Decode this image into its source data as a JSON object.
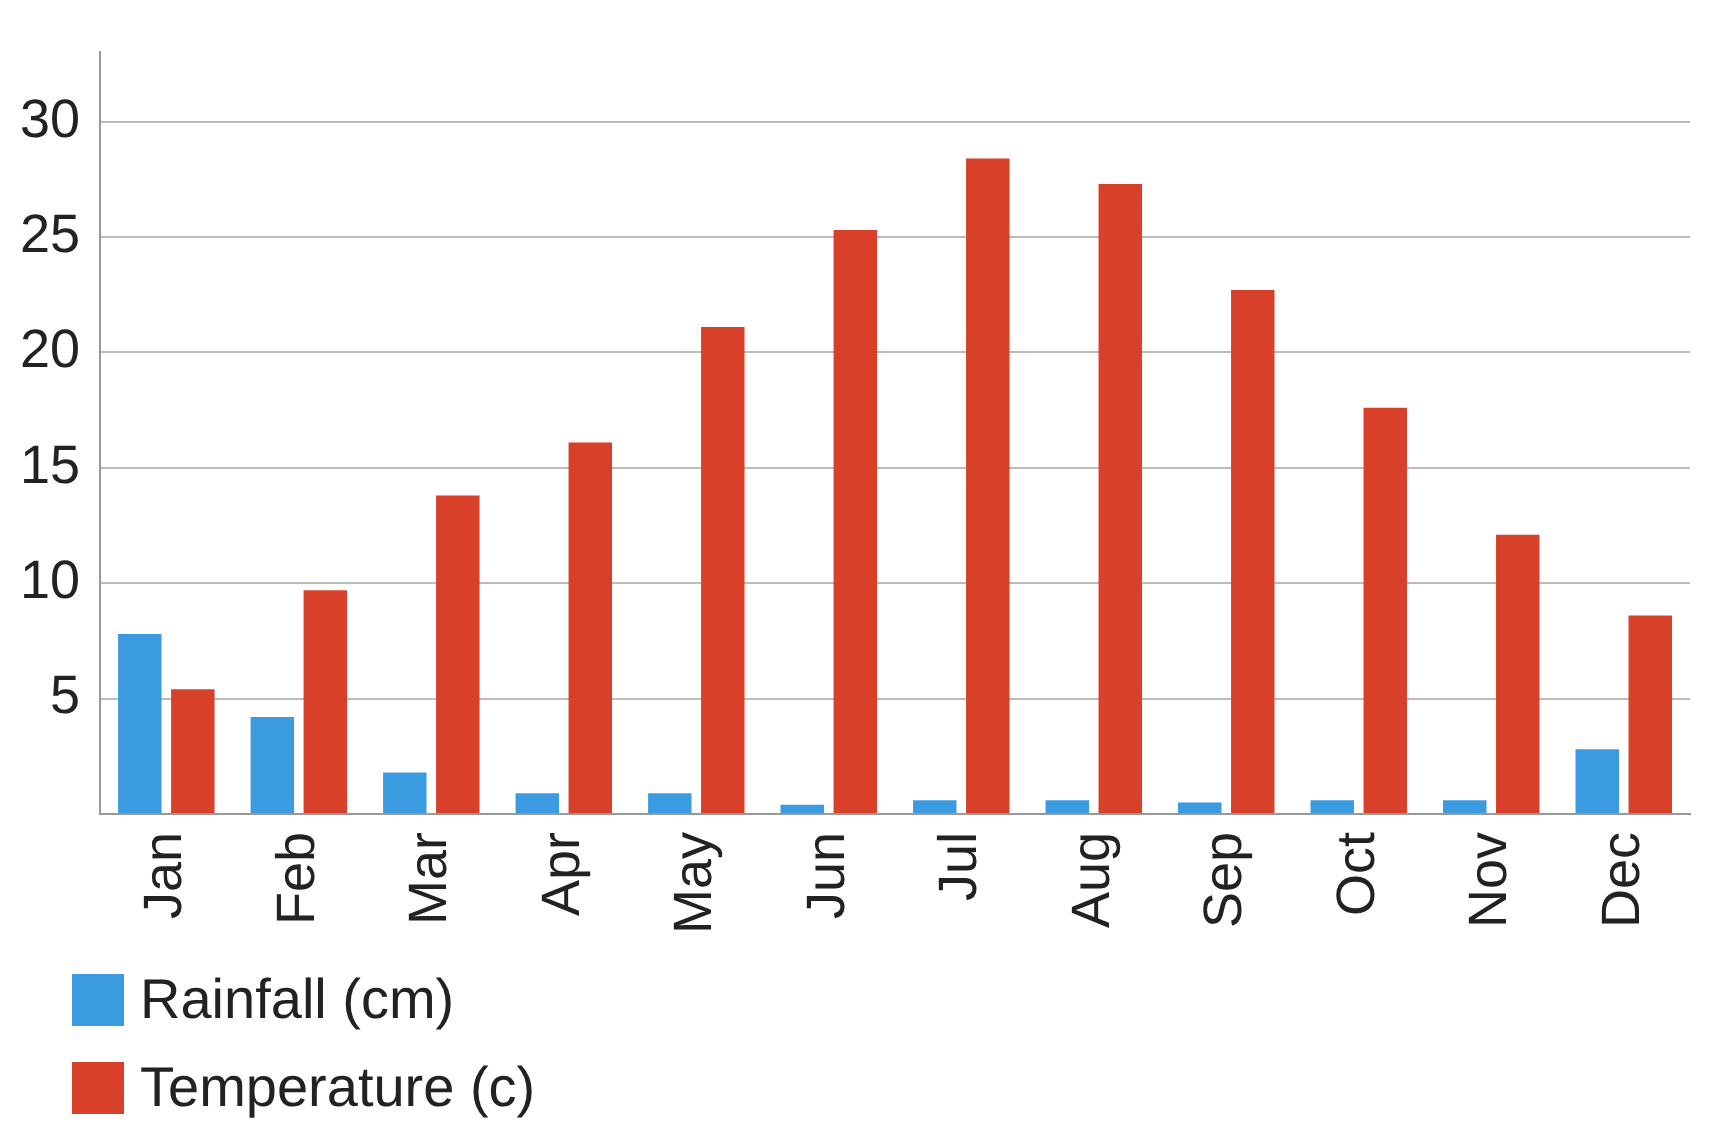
{
  "chart_data": {
    "type": "bar",
    "categories": [
      "Jan",
      "Feb",
      "Mar",
      "Apr",
      "May",
      "Jun",
      "Jul",
      "Aug",
      "Sep",
      "Oct",
      "Nov",
      "Dec"
    ],
    "series": [
      {
        "name": "Rainfall (cm)",
        "color": "#3b9be0",
        "values": [
          7.8,
          4.2,
          1.8,
          0.9,
          0.9,
          0.4,
          0.6,
          0.6,
          0.5,
          0.6,
          0.6,
          2.8
        ]
      },
      {
        "name": "Temperature (c)",
        "color": "#d8402a",
        "values": [
          5.4,
          9.7,
          13.8,
          16.1,
          21.1,
          25.3,
          28.4,
          27.3,
          22.7,
          17.6,
          12.1,
          8.6
        ]
      }
    ],
    "ylim": [
      0,
      33
    ],
    "yticks": [
      {
        "value": 0,
        "label": null
      },
      5,
      10,
      15,
      20,
      25,
      30
    ],
    "grid": "y",
    "legend": "bottom left"
  }
}
